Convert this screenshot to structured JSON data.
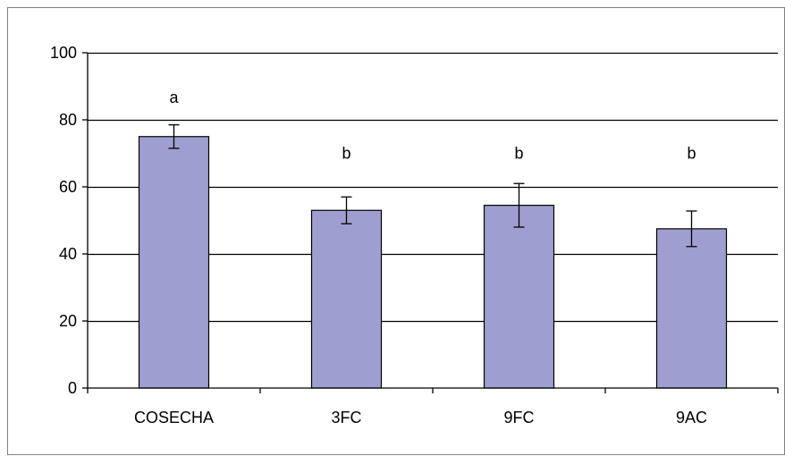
{
  "chart_data": {
    "type": "bar",
    "categories": [
      "COSECHA",
      "3FC",
      "9FC",
      "9AC"
    ],
    "values": [
      75,
      53,
      54.5,
      47.5
    ],
    "errors": [
      3.5,
      4,
      6.5,
      5.3
    ],
    "significance_letters": [
      "a",
      "b",
      "b",
      "b"
    ],
    "title": "",
    "xlabel": "",
    "ylabel": "",
    "ylim": [
      0,
      100
    ],
    "yticks": [
      0,
      20,
      40,
      60,
      80,
      100
    ],
    "grid": true,
    "legend": "none",
    "colors": {
      "bar_fill": "#9e9fd0",
      "bar_stroke": "#000000",
      "grid": "#000000",
      "frame": "#808080"
    }
  }
}
